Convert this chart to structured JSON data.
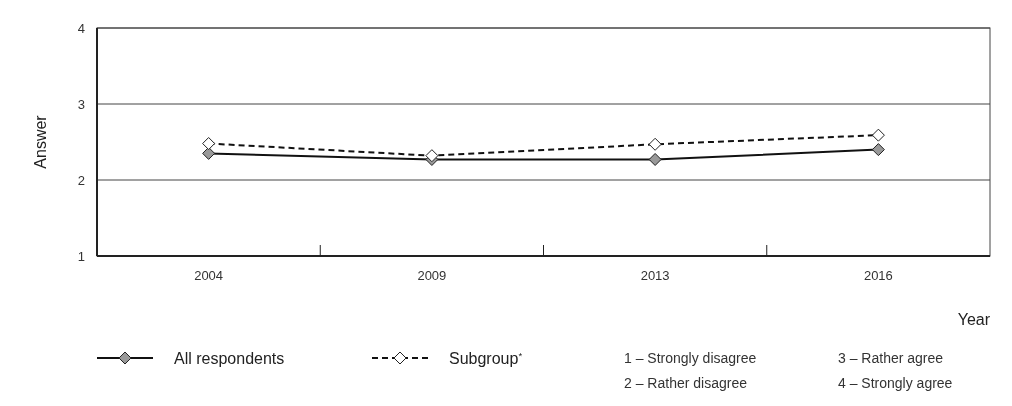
{
  "chart_data": {
    "type": "line",
    "xlabel": "Year",
    "ylabel": "Answer",
    "categories": [
      "2004",
      "2009",
      "2013",
      "2016"
    ],
    "series": [
      {
        "name": "All respondents",
        "color": "#999999",
        "line_style": "solid",
        "values": [
          2.35,
          2.27,
          2.27,
          2.4
        ]
      },
      {
        "name": "Subgroup$^{*}$",
        "color": "#ffffff",
        "line_style": "dashed",
        "values": [
          2.48,
          2.32,
          2.47,
          2.59
        ]
      }
    ],
    "ylim": [
      1,
      4
    ],
    "yticks": [
      1,
      2,
      3,
      4
    ],
    "grid": "y",
    "marker": "diamond",
    "legend": "bottom",
    "annotations": [
      "1 – Strongly disagree",
      "2 – Rather disagree",
      "3 – Rather agree",
      "4 – Strongly agree"
    ]
  }
}
